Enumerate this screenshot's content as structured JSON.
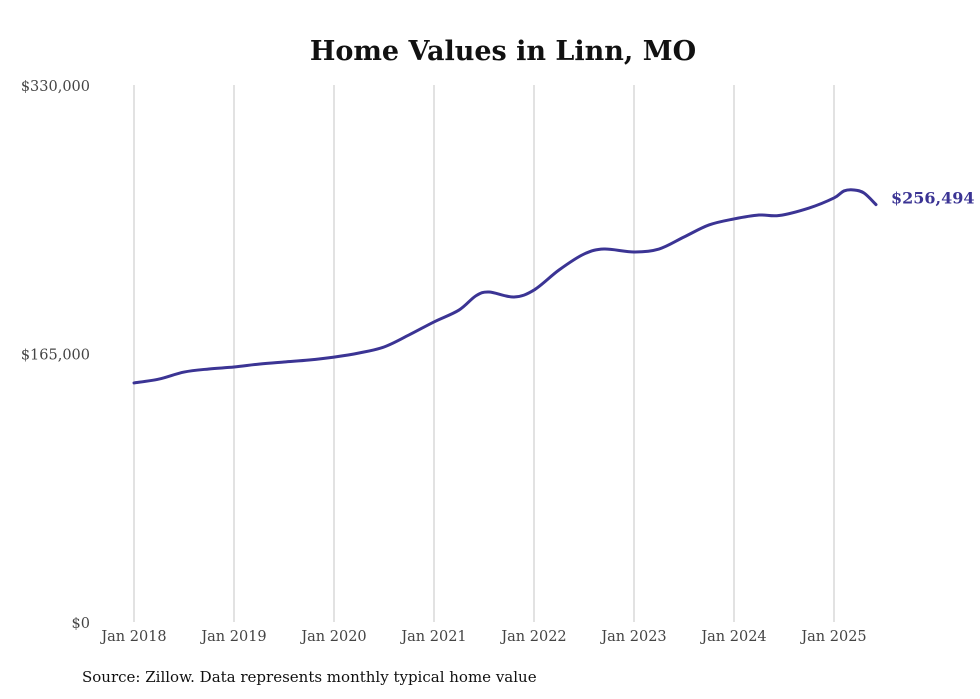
{
  "chart_data": {
    "type": "line",
    "title": "Home Values in Linn, MO",
    "xlabel": "",
    "ylabel": "",
    "ylim": [
      0,
      330000
    ],
    "yticks": [
      {
        "value": 0,
        "label": "$0"
      },
      {
        "value": 165000,
        "label": "$165,000"
      },
      {
        "value": 330000,
        "label": "$330,000"
      }
    ],
    "xticks": [
      {
        "value": 2018.0,
        "label": "Jan 2018"
      },
      {
        "value": 2019.0,
        "label": "Jan 2019"
      },
      {
        "value": 2020.0,
        "label": "Jan 2020"
      },
      {
        "value": 2021.0,
        "label": "Jan 2021"
      },
      {
        "value": 2022.0,
        "label": "Jan 2022"
      },
      {
        "value": 2023.0,
        "label": "Jan 2023"
      },
      {
        "value": 2024.0,
        "label": "Jan 2024"
      },
      {
        "value": 2025.0,
        "label": "Jan 2025"
      }
    ],
    "xlim": [
      2018.0,
      2025.42
    ],
    "grid": "vertical",
    "series": [
      {
        "name": "Typical home value",
        "color": "#3b3494",
        "end_label": "$256,494",
        "points": [
          [
            2018.0,
            146900
          ],
          [
            2018.25,
            149300
          ],
          [
            2018.5,
            153600
          ],
          [
            2018.75,
            155500
          ],
          [
            2019.0,
            156700
          ],
          [
            2019.25,
            158500
          ],
          [
            2019.5,
            159800
          ],
          [
            2019.75,
            161000
          ],
          [
            2020.0,
            162800
          ],
          [
            2020.25,
            165300
          ],
          [
            2020.5,
            169000
          ],
          [
            2020.75,
            176400
          ],
          [
            2021.0,
            184400
          ],
          [
            2021.25,
            191700
          ],
          [
            2021.42,
            200500
          ],
          [
            2021.55,
            202800
          ],
          [
            2021.8,
            199700
          ],
          [
            2022.0,
            204000
          ],
          [
            2022.25,
            216300
          ],
          [
            2022.5,
            226100
          ],
          [
            2022.7,
            229200
          ],
          [
            2023.0,
            227400
          ],
          [
            2023.25,
            229200
          ],
          [
            2023.5,
            236600
          ],
          [
            2023.75,
            244000
          ],
          [
            2024.0,
            247700
          ],
          [
            2024.25,
            250100
          ],
          [
            2024.45,
            249800
          ],
          [
            2024.75,
            254400
          ],
          [
            2025.0,
            260600
          ],
          [
            2025.1,
            264900
          ],
          [
            2025.2,
            265500
          ],
          [
            2025.3,
            263600
          ],
          [
            2025.42,
            256494
          ]
        ]
      }
    ]
  },
  "footer": {
    "source": "Source: Zillow. Data represents monthly typical home value"
  }
}
